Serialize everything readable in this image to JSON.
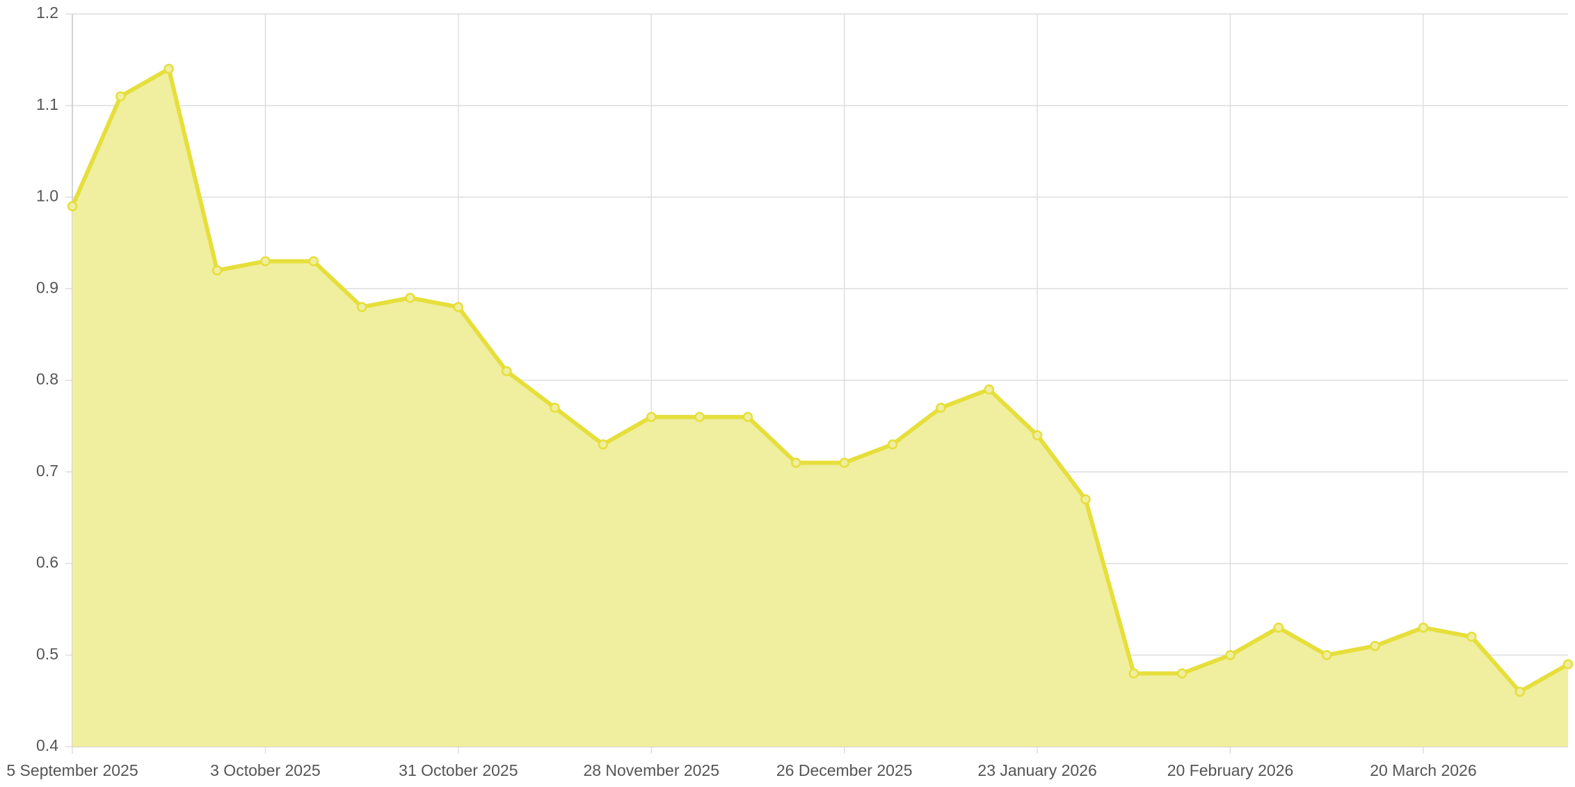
{
  "chart_data": {
    "type": "area",
    "categories": [
      "5 September 2025",
      null,
      null,
      null,
      "3 October 2025",
      null,
      null,
      null,
      "31 October 2025",
      null,
      null,
      null,
      "28 November 2025",
      null,
      null,
      null,
      "26 December 2025",
      null,
      null,
      null,
      "23 January 2026",
      null,
      null,
      null,
      "20 February 2026",
      null,
      null,
      null,
      "20 March 2026",
      null,
      null,
      null
    ],
    "series": [
      {
        "color": "#e6df3b",
        "fill": "#f0ee9f",
        "values": [
          0.99,
          1.11,
          1.14,
          0.92,
          0.93,
          0.93,
          0.88,
          0.89,
          0.88,
          0.81,
          0.77,
          0.73,
          0.76,
          0.76,
          0.76,
          0.71,
          0.71,
          0.73,
          0.77,
          0.79,
          0.74,
          0.67,
          0.48,
          0.48,
          0.5,
          0.53,
          0.5,
          0.51,
          0.53,
          0.52,
          0.46,
          0.49
        ]
      }
    ],
    "ylim": [
      0.4,
      1.2
    ],
    "yticks": [
      0.4,
      0.5,
      0.6,
      0.7,
      0.8,
      0.9,
      {
        "value": 1,
        "label": "1.0"
      },
      1.1,
      1.2
    ],
    "grid": true
  }
}
